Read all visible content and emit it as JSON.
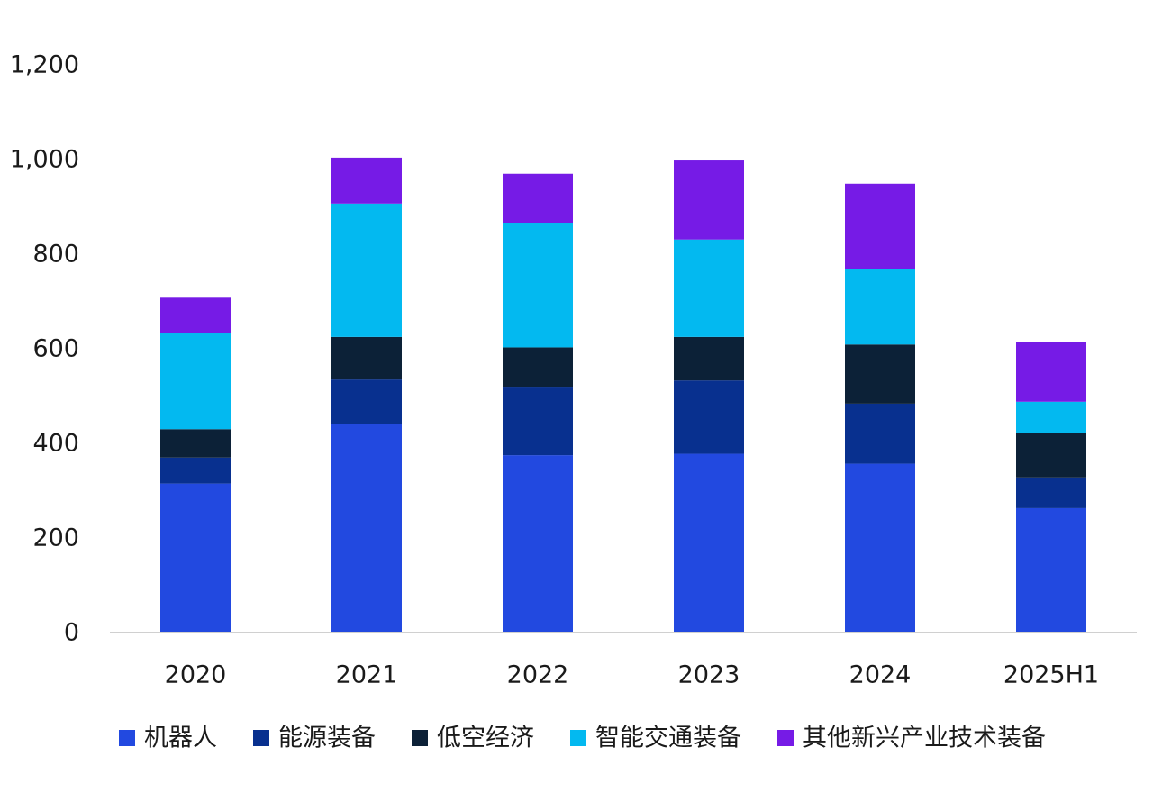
{
  "chart_data": {
    "type": "bar",
    "stacked": true,
    "categories": [
      "2020",
      "2021",
      "2022",
      "2023",
      "2024",
      "2025H1"
    ],
    "series": [
      {
        "name": "机器人",
        "color": "#2249e0",
        "values": [
          315,
          440,
          375,
          378,
          357,
          263
        ]
      },
      {
        "name": "能源装备",
        "color": "#08308f",
        "values": [
          55,
          95,
          143,
          155,
          127,
          65
        ]
      },
      {
        "name": "低空经济",
        "color": "#0c2137",
        "values": [
          60,
          90,
          85,
          92,
          125,
          93
        ]
      },
      {
        "name": "智能交通装备",
        "color": "#03b9f0",
        "values": [
          203,
          282,
          262,
          206,
          160,
          67
        ]
      },
      {
        "name": "其他新兴产业技术装备",
        "color": "#761be6",
        "values": [
          75,
          97,
          105,
          167,
          180,
          127
        ]
      }
    ],
    "yticks": [
      "0",
      "200",
      "400",
      "600",
      "800",
      "1,000",
      "1,200"
    ],
    "ylim": [
      0,
      1200
    ],
    "grid": false,
    "legend_position": "bottom"
  }
}
